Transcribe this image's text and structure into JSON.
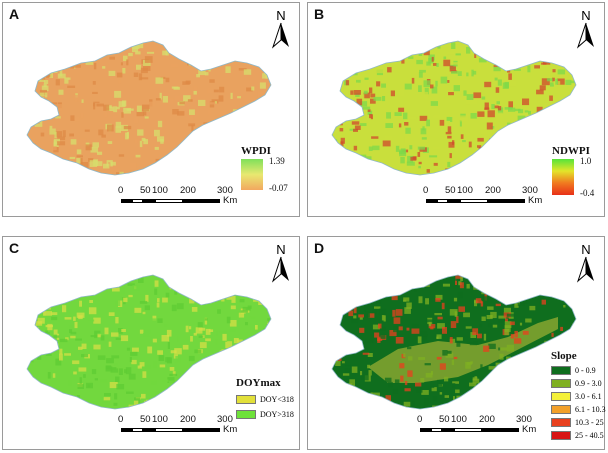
{
  "panels": [
    {
      "label": "A",
      "legend": {
        "title": "WPDI",
        "max": "1.39",
        "min": "-0.07",
        "gradient": [
          "#7fe05a",
          "#e8e870",
          "#f2a860"
        ]
      },
      "colors": {
        "base": "#e9a25f",
        "light": "#d7dd6c",
        "dark": "#dd8a46"
      }
    },
    {
      "label": "B",
      "legend": {
        "title": "NDWPI",
        "max": "1.0",
        "min": "-0.4",
        "gradient": [
          "#55e43a",
          "#e3e52a",
          "#f07a20",
          "#e83018"
        ]
      },
      "colors": {
        "base": "#c9df3c",
        "light": "#7cd94a",
        "dark": "#d04a2c"
      }
    },
    {
      "label": "C",
      "legend": {
        "title": "DOYmax",
        "items": [
          {
            "label": "DOY<318",
            "color": "#e2e03a"
          },
          {
            "label": "DOY>318",
            "color": "#6ee23a"
          }
        ]
      },
      "colors": {
        "base": "#72d83e",
        "light": "#d6df46",
        "dark": "#5fcc34"
      }
    },
    {
      "label": "D",
      "legend": {
        "title": "Slope",
        "items": [
          {
            "label": "0 - 0.9",
            "color": "#0f6e1e"
          },
          {
            "label": "0.9 - 3.0",
            "color": "#7fb021"
          },
          {
            "label": "3.0 - 6.1",
            "color": "#f4f13a"
          },
          {
            "label": "6.1 - 10.3",
            "color": "#f2a02a"
          },
          {
            "label": "10.3 - 25",
            "color": "#e8401e"
          },
          {
            "label": "25 - 40.5",
            "color": "#d81414"
          }
        ]
      },
      "colors": {
        "base": "#0f6e1e",
        "light": "#7fb021",
        "dark": "#e8401e"
      }
    }
  ],
  "north_label": "N",
  "scale": {
    "ticks": [
      "0",
      "50",
      "100",
      "200",
      "300"
    ],
    "unit": "Km"
  }
}
